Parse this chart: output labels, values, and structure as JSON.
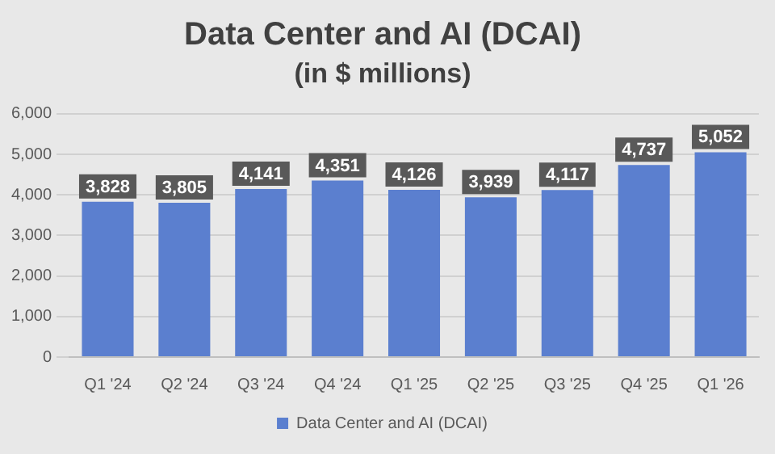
{
  "chart_data": {
    "type": "bar",
    "title": "Data Center and AI (DCAI)",
    "subtitle": "(in $ millions)",
    "categories": [
      "Q1 '24",
      "Q2 '24",
      "Q3 '24",
      "Q4 '24",
      "Q1 '25",
      "Q2 '25",
      "Q3 '25",
      "Q4 '25",
      "Q1 '26"
    ],
    "series": [
      {
        "name": "Data Center and AI (DCAI)",
        "color": "#5b7fcf",
        "values": [
          3828,
          3805,
          4141,
          4351,
          4126,
          3939,
          4117,
          4737,
          5052
        ],
        "value_labels": [
          "3,828",
          "3,805",
          "4,141",
          "4,351",
          "4,126",
          "3,939",
          "4,117",
          "4,737",
          "5,052"
        ]
      }
    ],
    "ylim": [
      0,
      6000
    ],
    "yticks": [
      {
        "value": 0,
        "label": "0"
      },
      {
        "value": 1000,
        "label": "1,000"
      },
      {
        "value": 2000,
        "label": "2,000"
      },
      {
        "value": 3000,
        "label": "3,000"
      },
      {
        "value": 4000,
        "label": "4,000"
      },
      {
        "value": 5000,
        "label": "5,000"
      },
      {
        "value": 6000,
        "label": "6,000"
      }
    ],
    "grid": "y",
    "legend": "bottom"
  }
}
